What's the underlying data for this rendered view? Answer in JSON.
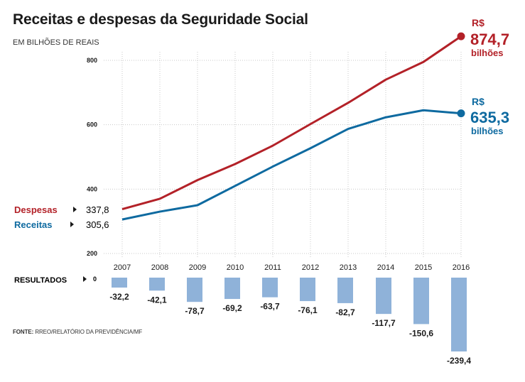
{
  "title": "Receitas e despesas da Seguridade Social",
  "subtitle": "EM BILHÕES DE REAIS",
  "source_label": "FONTE:",
  "source_text": "RREO/RELATÓRIO DA PREVIDÊNCIA/MF",
  "results_label": "RESULTADOS",
  "results_zero_label": "0",
  "colors": {
    "despesas": "#b32128",
    "receitas": "#0e6aa0",
    "bars": "#8fb2d9",
    "grid": "#c8c8c8"
  },
  "legend": {
    "despesas": {
      "name": "Despesas",
      "value": "337,8"
    },
    "receitas": {
      "name": "Receitas",
      "value": "305,6"
    }
  },
  "end_labels": {
    "despesas": {
      "currency": "R$",
      "value": "874,7",
      "unit": "bilhões"
    },
    "receitas": {
      "currency": "R$",
      "value": "635,3",
      "unit": "bilhões"
    }
  },
  "chart_data": {
    "type": "line",
    "x": [
      "2007",
      "2008",
      "2009",
      "2010",
      "2011",
      "2012",
      "2013",
      "2014",
      "2015",
      "2016"
    ],
    "ylim": [
      200,
      900
    ],
    "yticks": [
      200,
      400,
      600,
      800
    ],
    "series": [
      {
        "name": "Despesas",
        "values": [
          337.8,
          370,
          428,
          478,
          535,
          602,
          668,
          740,
          795,
          874.7
        ]
      },
      {
        "name": "Receitas",
        "values": [
          305.6,
          330,
          350,
          410,
          470,
          527,
          587,
          623,
          645,
          635.3
        ]
      }
    ],
    "results": {
      "type": "bar",
      "values": [
        -32.2,
        -42.1,
        -78.7,
        -69.2,
        -63.7,
        -76.1,
        -82.7,
        -117.7,
        -150.6,
        -239.4
      ],
      "labels": [
        "-32,2",
        "-42,1",
        "-78,7",
        "-69,2",
        "-63,7",
        "-76,1",
        "-82,7",
        "-117,7",
        "-150,6",
        "-239,4"
      ]
    }
  }
}
